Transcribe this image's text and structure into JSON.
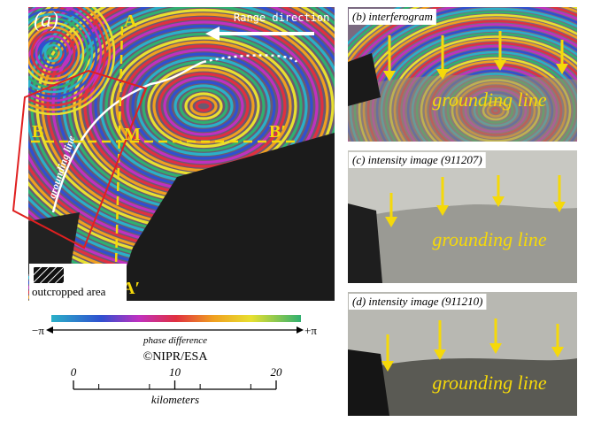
{
  "panel_a": {
    "label": "(a)",
    "range_direction": "Range direction",
    "profiles": {
      "a": "A",
      "a_prime": "A′",
      "b": "B",
      "b_prime": "B′",
      "m": "M"
    },
    "grounding_line": "grounding line",
    "legend": "outcropped area"
  },
  "colorbar": {
    "min_label": "−π",
    "max_label": "+π",
    "title": "phase difference"
  },
  "credit": "©NIPR/ESA",
  "scale_bar": {
    "ticks": [
      0,
      10,
      20
    ],
    "unit": "kilometers"
  },
  "panels": [
    {
      "title": "(b) interferogram",
      "annotation": "grounding line"
    },
    {
      "title": "(c) intensity image (911207)",
      "annotation": "grounding line"
    },
    {
      "title": "(d) intensity image (911210)",
      "annotation": "grounding line"
    }
  ]
}
